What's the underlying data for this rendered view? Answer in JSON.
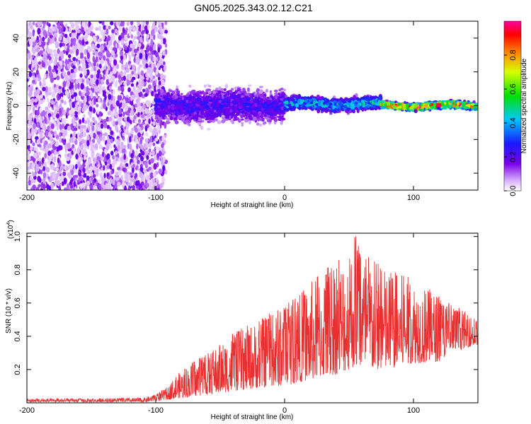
{
  "title": "GN05.2025.343.02.12.C21",
  "chart_data": [
    {
      "type": "heatmap",
      "xlabel": "Height of straight line (km)",
      "ylabel": "Frequency (Hz)",
      "xlim": [
        -200,
        150
      ],
      "ylim": [
        -50,
        50
      ],
      "x_ticks": [
        -200,
        -100,
        0,
        100
      ],
      "x_tick_labels": [
        "-200",
        "-100",
        "0",
        "100"
      ],
      "y_ticks": [
        -40,
        -20,
        0,
        20,
        40
      ],
      "y_tick_labels": [
        "-40",
        "-20",
        "0",
        "20",
        "40"
      ],
      "colorbar": {
        "label": "Normalized spectral amplitude",
        "range": [
          0,
          1
        ],
        "ticks": [
          0,
          0.2,
          0.4,
          0.6,
          0.8
        ],
        "tick_labels": [
          "0.0",
          "0.2",
          "0.4",
          "0.6",
          "0.8"
        ],
        "colormap": "rainbow (white-violet-blue-cyan-green-yellow-red-magenta)"
      },
      "features": [
        {
          "x_range": [
            -200,
            -100
          ],
          "description": "broadband noise across all frequencies",
          "amplitude": 0.1
        },
        {
          "x_range": [
            -100,
            0
          ],
          "center_hz": 0,
          "half_width_hz": 10,
          "amplitude": 0.25
        },
        {
          "x_range": [
            0,
            75
          ],
          "center_hz": 1,
          "half_width_hz": 4,
          "amplitude": 0.45
        },
        {
          "x_range": [
            75,
            150
          ],
          "center_hz": 0,
          "half_width_hz": 2,
          "amplitude": 0.9
        }
      ]
    },
    {
      "type": "line",
      "xlabel": "Height of straight line (km)",
      "ylabel": "SNR (10 * v/v)",
      "y_multiplier_label": "(x10",
      "y_multiplier_exp": "4",
      "y_multiplier_close": ")",
      "xlim": [
        -200,
        150
      ],
      "ylim": [
        0,
        1.02
      ],
      "x_ticks": [
        -200,
        -100,
        0,
        100
      ],
      "x_tick_labels": [
        "-200",
        "-100",
        "0",
        "100"
      ],
      "y_ticks": [
        0.2,
        0.4,
        0.6,
        0.8,
        1.0
      ],
      "y_tick_labels": [
        "0.2",
        "0.4",
        "0.6",
        "0.8",
        "1.0"
      ],
      "series": [
        {
          "name": "SNR",
          "color": "#e83030",
          "envelope_x": [
            -200,
            -150,
            -110,
            -100,
            -90,
            -80,
            -70,
            -60,
            -50,
            -40,
            -30,
            -20,
            -10,
            0,
            10,
            20,
            30,
            40,
            50,
            55,
            60,
            70,
            80,
            90,
            100,
            110,
            120,
            130,
            140,
            150
          ],
          "envelope_min": [
            0.005,
            0.005,
            0.005,
            0.01,
            0.02,
            0.03,
            0.04,
            0.05,
            0.06,
            0.07,
            0.08,
            0.09,
            0.1,
            0.1,
            0.12,
            0.14,
            0.16,
            0.17,
            0.2,
            0.22,
            0.2,
            0.2,
            0.2,
            0.22,
            0.24,
            0.24,
            0.25,
            0.3,
            0.33,
            0.35
          ],
          "envelope_max": [
            0.025,
            0.025,
            0.03,
            0.05,
            0.1,
            0.2,
            0.25,
            0.3,
            0.36,
            0.42,
            0.46,
            0.5,
            0.55,
            0.6,
            0.65,
            0.72,
            0.8,
            0.85,
            0.92,
            1.02,
            0.9,
            0.86,
            0.8,
            0.78,
            0.75,
            0.7,
            0.65,
            0.6,
            0.55,
            0.5
          ]
        }
      ]
    }
  ]
}
